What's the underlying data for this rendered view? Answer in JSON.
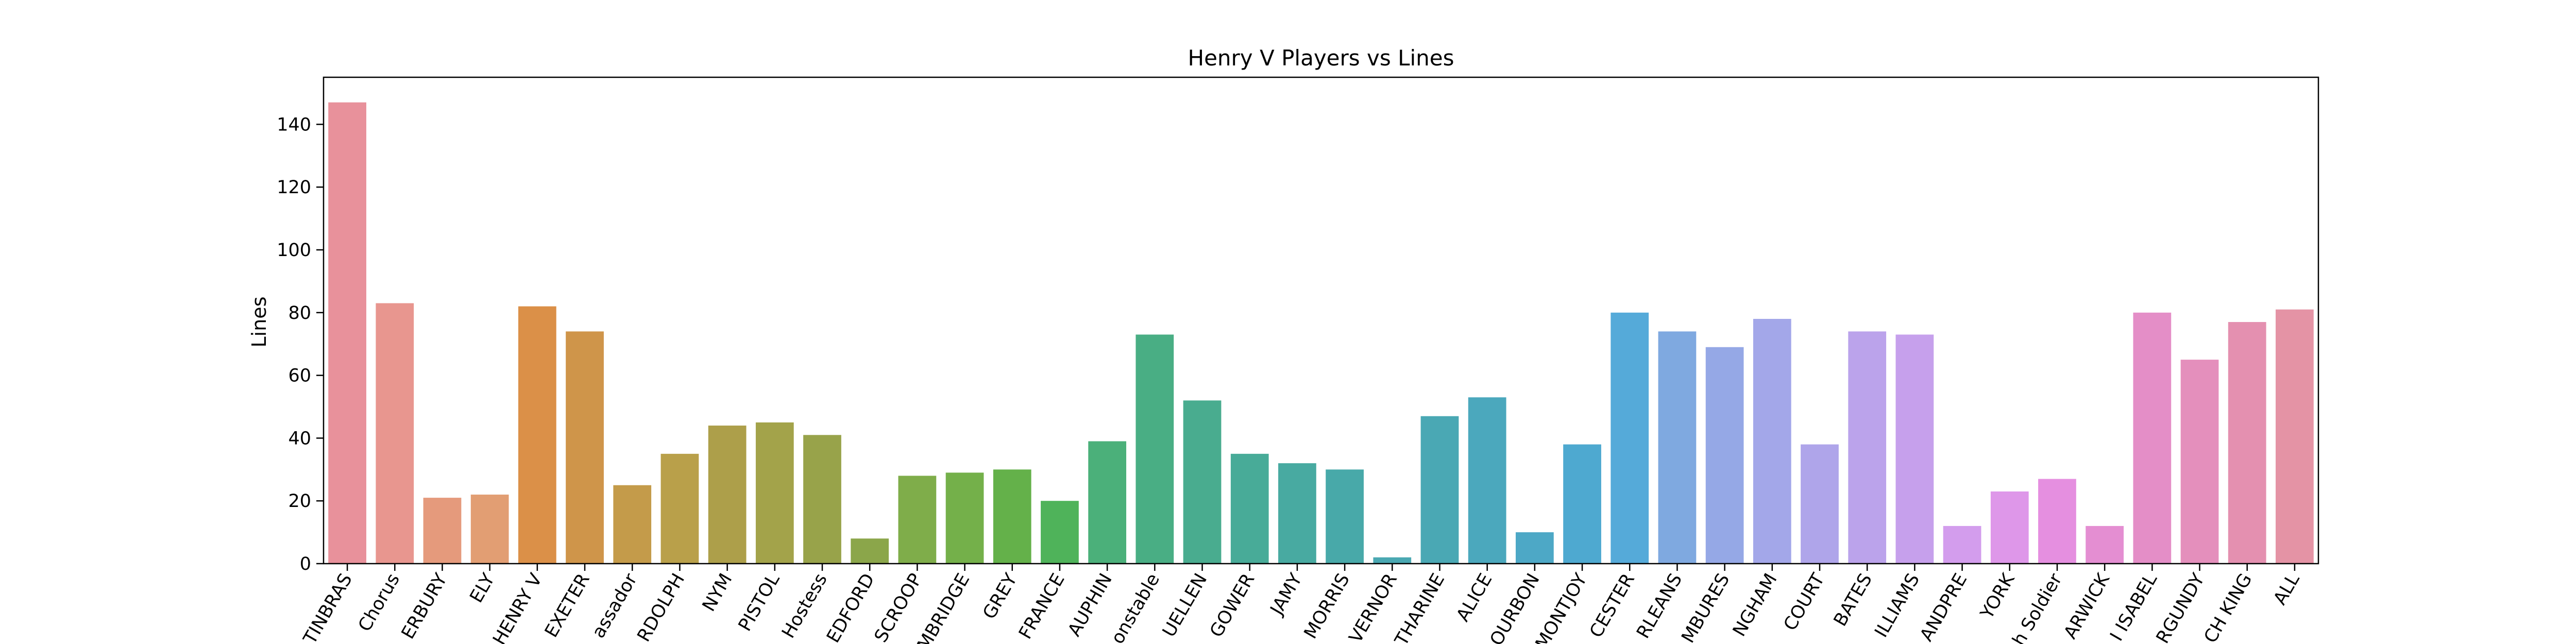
{
  "chart_data": {
    "type": "bar",
    "title": "Henry V Players vs Lines",
    "xlabel": "",
    "ylabel": "Lines",
    "ylim": [
      0,
      155
    ],
    "yticks": [
      0,
      20,
      40,
      60,
      80,
      100,
      120,
      140
    ],
    "grid": false,
    "categories": [
      "ARCHBISHOP OF CANTERBURY/FORTINBRAS",
      "Chorus",
      "CANTERBURY",
      "ELY",
      "KING HENRY V",
      "EXETER",
      "Ambassador",
      "BARDOLPH",
      "NYM",
      "PISTOL",
      "Hostess",
      "BEDFORD",
      "SCROOP",
      "CAMBRIDGE",
      "GREY",
      "KING OF FRANCE",
      "DAUPHIN",
      "Constable",
      "FLUELLEN",
      "GOWER",
      "JAMY",
      "MACMORRIS",
      "VERNOR",
      "KATHARINE",
      "ALICE",
      "BOURBON",
      "MONTJOY",
      "GLOUCESTER",
      "ORLEANS",
      "RAMBURES",
      "BUCKINGHAM",
      "COURT",
      "BATES",
      "WILLIAMS",
      "GRANDPRE",
      "YORK",
      "French Soldier",
      "WARWICK",
      "QUEEN ISABEL",
      "BURGUNDY",
      "FRENCH KING",
      "ALL"
    ],
    "tick_labels": [
      "TINBRAS",
      "Chorus",
      "ERBURY",
      "ELY",
      "HENRY V",
      "EXETER",
      "assador",
      "RDOLPH",
      "NYM",
      "PISTOL",
      "Hostess",
      "EDFORD",
      "SCROOP",
      "MBRIDGE",
      "GREY",
      "FRANCE",
      "AUPHIN",
      "onstable",
      "UELLEN",
      "GOWER",
      "JAMY",
      "MORRIS",
      "VERNOR",
      "THARINE",
      "ALICE",
      "OURBON",
      "MONTJOY",
      "CESTER",
      "RLEANS",
      "MBURES",
      "NGHAM",
      "COURT",
      "BATES",
      "ILLIAMS",
      "ANDPRE",
      "YORK",
      "h Soldier",
      "ARWICK",
      "I ISABEL",
      "RGUNDY",
      "CH KING",
      "ALL"
    ],
    "values": [
      147,
      83,
      21,
      22,
      82,
      74,
      25,
      35,
      44,
      45,
      41,
      8,
      28,
      29,
      30,
      20,
      39,
      73,
      52,
      35,
      32,
      30,
      2,
      47,
      53,
      10,
      38,
      80,
      74,
      69,
      78,
      38,
      74,
      73,
      12,
      23,
      27,
      12,
      80,
      65,
      77,
      81
    ],
    "colors": [
      "#e8919b",
      "#e8968f",
      "#e59a7c",
      "#e29e73",
      "#db9048",
      "#cf954a",
      "#c49b4a",
      "#b9a04a",
      "#ad9f4a",
      "#a3a34a",
      "#98a34a",
      "#8ba64a",
      "#7fad4a",
      "#74b04a",
      "#64b14a",
      "#4fb35a",
      "#4bb07a",
      "#49ae84",
      "#49ac8f",
      "#48ab98",
      "#48aaa1",
      "#48a9a9",
      "#4aa8b2",
      "#4aa8b4",
      "#4ba8bd",
      "#4da8c6",
      "#4ea9d0",
      "#55aad9",
      "#7fa9e0",
      "#95a8e6",
      "#a3a7e9",
      "#afa5ea",
      "#bba3eb",
      "#c6a0ec",
      "#d39ded",
      "#de97e9",
      "#e58fe0",
      "#e48ed2",
      "#e48ec7",
      "#e48fbc",
      "#e490b0",
      "#e493a5"
    ]
  }
}
